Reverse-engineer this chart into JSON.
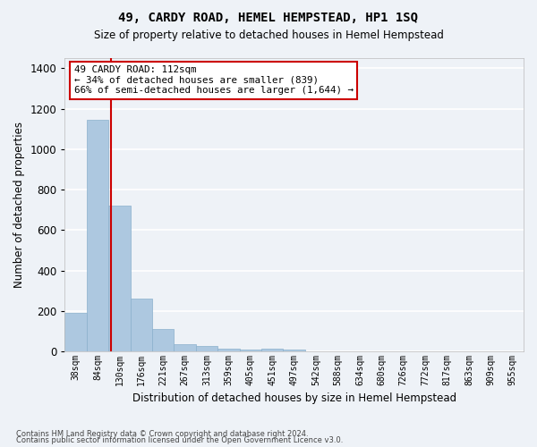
{
  "title": "49, CARDY ROAD, HEMEL HEMPSTEAD, HP1 1SQ",
  "subtitle": "Size of property relative to detached houses in Hemel Hempstead",
  "xlabel": "Distribution of detached houses by size in Hemel Hempstead",
  "ylabel": "Number of detached properties",
  "footer1": "Contains HM Land Registry data © Crown copyright and database right 2024.",
  "footer2": "Contains public sector information licensed under the Open Government Licence v3.0.",
  "categories": [
    "38sqm",
    "84sqm",
    "130sqm",
    "176sqm",
    "221sqm",
    "267sqm",
    "313sqm",
    "359sqm",
    "405sqm",
    "451sqm",
    "497sqm",
    "542sqm",
    "588sqm",
    "634sqm",
    "680sqm",
    "726sqm",
    "772sqm",
    "817sqm",
    "863sqm",
    "909sqm",
    "955sqm"
  ],
  "values": [
    190,
    1145,
    720,
    263,
    110,
    35,
    27,
    15,
    8,
    13,
    8,
    0,
    0,
    0,
    0,
    0,
    0,
    0,
    0,
    0,
    0
  ],
  "bar_color": "#adc8e0",
  "bar_edge_color": "#8ab0cc",
  "bg_color": "#eef2f7",
  "grid_color": "#ffffff",
  "property_line_x": 1.62,
  "annotation_text": "49 CARDY ROAD: 112sqm\n← 34% of detached houses are smaller (839)\n66% of semi-detached houses are larger (1,644) →",
  "annotation_box_color": "#ffffff",
  "annotation_box_edge": "#cc0000",
  "line_color": "#cc0000",
  "ylim": [
    0,
    1450
  ],
  "yticks": [
    0,
    200,
    400,
    600,
    800,
    1000,
    1200,
    1400
  ]
}
